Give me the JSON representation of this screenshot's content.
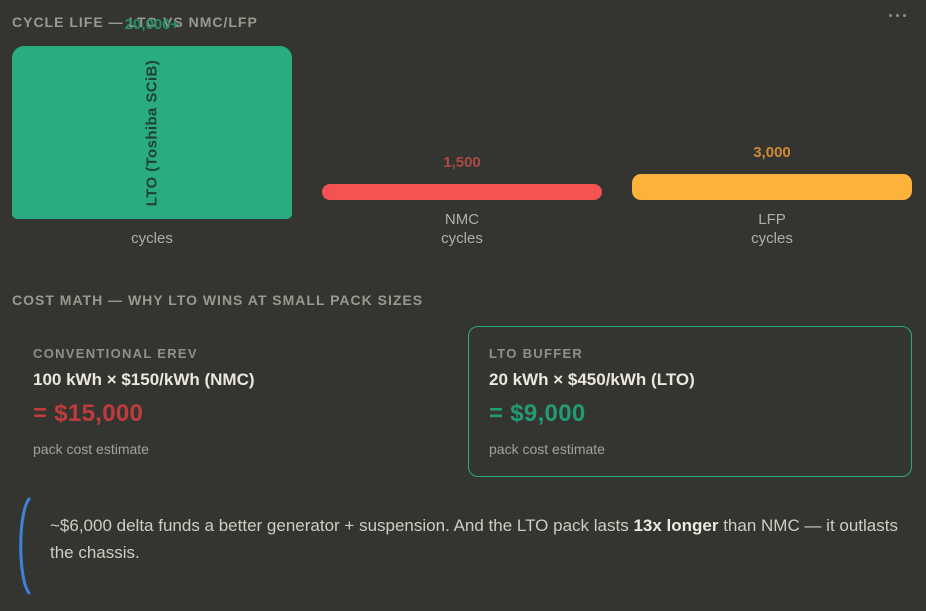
{
  "chart_section": {
    "title": "CYCLE LIFE — LTO VS NMC/LFP",
    "menu_icon": "ellipsis-icon"
  },
  "chart_data": {
    "type": "bar",
    "title": "CYCLE LIFE — LTO VS NMC/LFP",
    "categories": [
      "LTO (Toshiba SCiB)",
      "NMC",
      "LFP"
    ],
    "values": [
      20000,
      1500,
      3000
    ],
    "value_labels": [
      "20,000+",
      "1,500",
      "3,000"
    ],
    "unit": "cycles",
    "ylim": [
      0,
      20000
    ],
    "grid": false,
    "legend": false,
    "bar_colors": [
      "#2bab81",
      "#f35353",
      "#fdb23c"
    ],
    "value_label_colors": [
      "#23906e",
      "#a84a46",
      "#cd8c34"
    ],
    "inner_label": "LTO (Toshiba SCiB)",
    "inner_label_color": "#1d4236",
    "tick_labels": [
      [
        "cycles"
      ],
      [
        "NMC",
        "cycles"
      ],
      [
        "LFP",
        "cycles"
      ]
    ]
  },
  "cost_section": {
    "title": "COST MATH — WHY LTO WINS AT SMALL PACK SIZES",
    "cards": [
      {
        "label": "CONVENTIONAL EREV",
        "formula": "100 kWh × $150/kWh (NMC)",
        "total": "= $15,000",
        "total_color": "#c03c3c",
        "sub": "pack cost estimate"
      },
      {
        "label": "LTO BUFFER",
        "formula": "20 kWh × $450/kWh (LTO)",
        "total": "= $9,000",
        "total_color": "#239b74",
        "sub": "pack cost estimate",
        "border_color": "#2aa87e"
      }
    ]
  },
  "note": {
    "text_before": "~$6,000 delta funds a better generator + suspension. And the LTO pack lasts ",
    "bold_text": "13x longer",
    "text_after": " than NMC — it outlasts the chassis.",
    "accent": "#3f82d9"
  }
}
